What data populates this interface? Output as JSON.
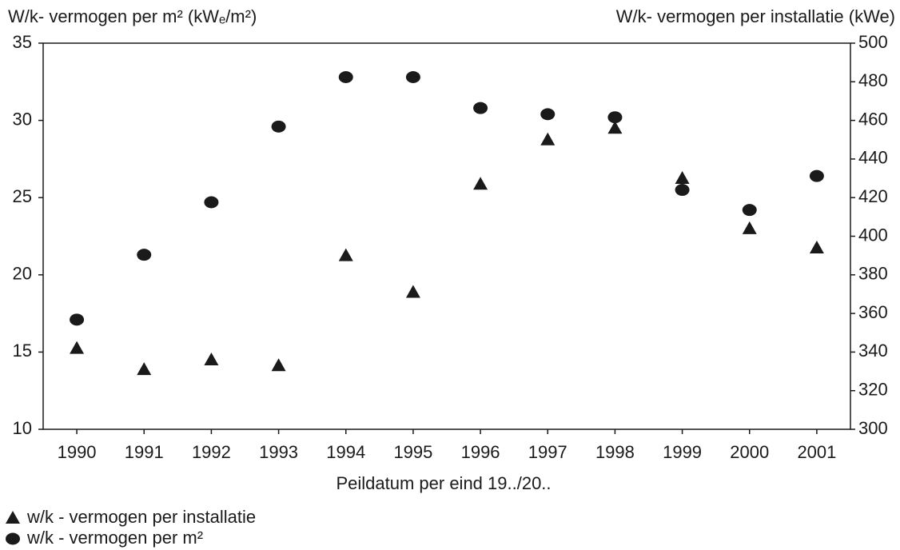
{
  "chart_data": {
    "type": "scatter",
    "y_label": "W/k- vermogen per m² (kWₑ/m²)",
    "y2_label": "W/k- vermogen per installatie (kWe)",
    "x_label": "Peildatum per eind 19../20..",
    "categories": [
      "1990",
      "1991",
      "1992",
      "1993",
      "1994",
      "1995",
      "1996",
      "1997",
      "1998",
      "1999",
      "2000",
      "2001"
    ],
    "series": [
      {
        "name": "w/k - vermogen per installatie",
        "marker": "triangle",
        "color": "#1a1a1a",
        "axis": "y2",
        "values": [
          342,
          331,
          336,
          333,
          390,
          371,
          427,
          450,
          456,
          430,
          404,
          394
        ]
      },
      {
        "name": "w/k - vermogen per m²",
        "marker": "circle",
        "color": "#1a1a1a",
        "values": [
          17.1,
          21.3,
          24.7,
          29.6,
          32.8,
          32.8,
          30.8,
          30.4,
          30.2,
          25.5,
          24.2,
          26.4
        ]
      }
    ],
    "ylim": [
      10,
      35
    ],
    "yticks": [
      10,
      15,
      20,
      25,
      30,
      35
    ],
    "y2lim": [
      300,
      500
    ],
    "y2ticks": [
      300,
      320,
      340,
      360,
      380,
      400,
      420,
      440,
      460,
      480,
      500
    ],
    "grid": false
  }
}
